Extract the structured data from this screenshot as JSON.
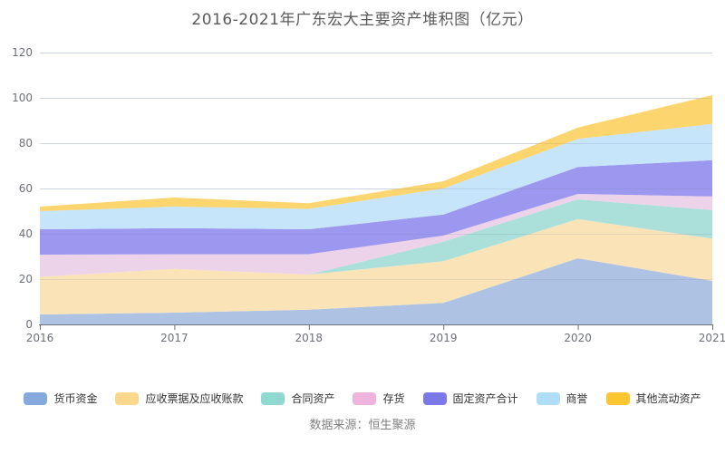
{
  "page": {
    "source_note": "数据来源：恒生聚源"
  },
  "chart_data": {
    "type": "area",
    "stacked": true,
    "title": "2016-2021年广东宏大主要资产堆积图（亿元）",
    "xlabel": "",
    "ylabel": "",
    "categories": [
      "2016",
      "2017",
      "2018",
      "2019",
      "2020",
      "2021"
    ],
    "y_ticks": [
      0,
      20,
      40,
      60,
      80,
      100,
      120
    ],
    "ylim": [
      0,
      120
    ],
    "grid": true,
    "legend_position": "bottom",
    "series": [
      {
        "key": "huobi-zijin",
        "name": "货币资金",
        "values": [
          4.4,
          5.2,
          6.5,
          9.5,
          29.2,
          19.2
        ],
        "legend_color": "#85A9DC",
        "area_color": "#AEC3E4"
      },
      {
        "key": "yingshou",
        "name": "应收票据及应收账款",
        "values": [
          16.6,
          19.3,
          15.5,
          18.4,
          17.3,
          18.7
        ],
        "legend_color": "#FAD98E",
        "area_color": "#FBE3B8"
      },
      {
        "key": "hetong-zichan",
        "name": "合同资产",
        "values": [
          0,
          0,
          0,
          8.6,
          8.7,
          12.6
        ],
        "legend_color": "#8FD9D2",
        "area_color": "#AAE0D9"
      },
      {
        "key": "cunhuo",
        "name": "存货",
        "values": [
          9.8,
          6.5,
          9.0,
          2.7,
          2.4,
          6.0
        ],
        "legend_color": "#EEB4DE",
        "area_color": "#EDD3EA"
      },
      {
        "key": "guding-zichan",
        "name": "固定资产合计",
        "values": [
          11.2,
          11.5,
          11.0,
          9.3,
          11.9,
          16.0
        ],
        "legend_color": "#7B79E8",
        "area_color": "#9C98EF"
      },
      {
        "key": "shangyu",
        "name": "商誉",
        "values": [
          8.0,
          9.5,
          9.0,
          11.5,
          12.4,
          16.0
        ],
        "legend_color": "#AEDFF7",
        "area_color": "#C6E5FB"
      },
      {
        "key": "qita-liudong",
        "name": "其他流动资产",
        "values": [
          2.0,
          4.0,
          2.5,
          3.2,
          5.0,
          12.7
        ],
        "legend_color": "#FBC632",
        "area_color": "#FCD56E"
      }
    ],
    "axis_colors": {
      "axis_line": "#6E7079",
      "tick_label": "#6E7079",
      "gridline": "#E0E6F1"
    }
  }
}
